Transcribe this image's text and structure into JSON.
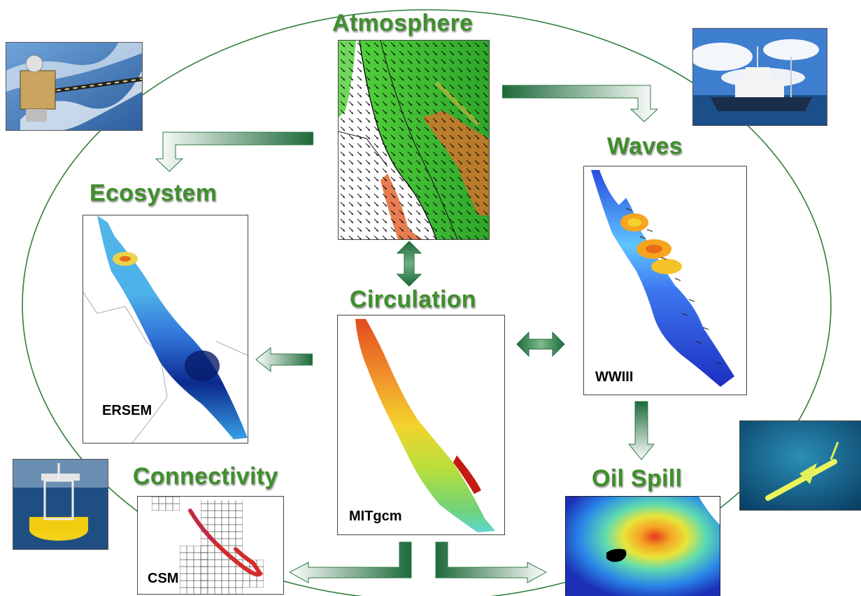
{
  "titles": {
    "atmosphere": "Atmosphere",
    "waves": "Waves",
    "ecosystem": "Ecosystem",
    "circulation": "Circulation",
    "connectivity": "Connectivity",
    "oil_spill": "Oil Spill"
  },
  "model_labels": {
    "ersem": "ERSEM",
    "wwiii": "WWIII",
    "mitgcm": "MITgcm",
    "csm": "CSM"
  },
  "colors": {
    "title_green": "#3f8f2c",
    "arrow_dark": "#1d6a3a",
    "arrow_light": "#ffffff",
    "ring": "#2f7d3a"
  },
  "photos": [
    "satellite",
    "research-ship",
    "buoy",
    "ocean-glider"
  ]
}
